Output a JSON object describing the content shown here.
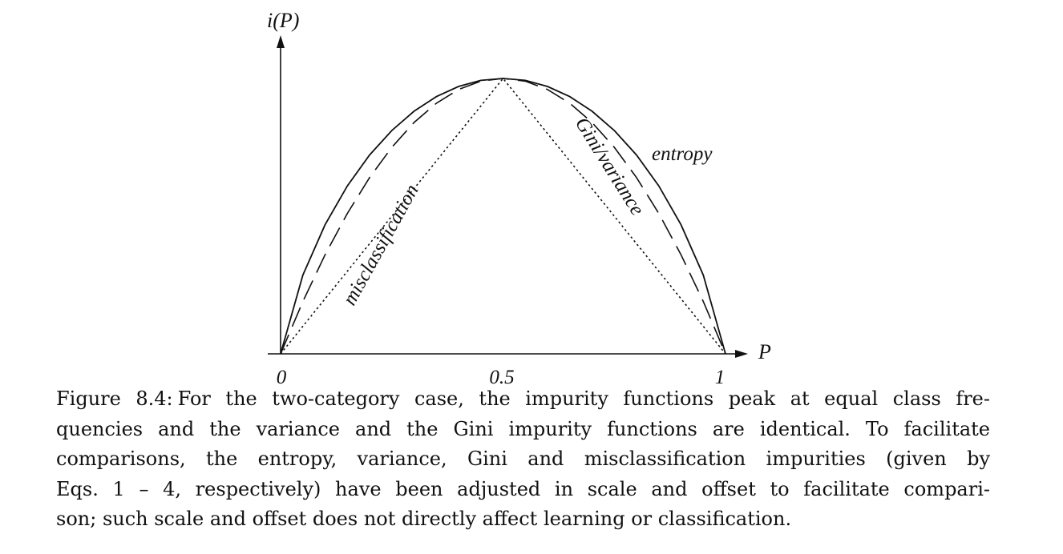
{
  "figure": {
    "y_axis_label": "i(P)",
    "x_axis_label": "P",
    "ticks": [
      "0",
      "0.5",
      "1"
    ],
    "curve_labels": {
      "entropy": "entropy",
      "gini": "Gini/variance",
      "misclassification": "misclassification"
    }
  },
  "chart_data": {
    "type": "line",
    "xlabel": "P",
    "ylabel": "i(P)",
    "xlim": [
      0,
      1
    ],
    "ylim": [
      0,
      1
    ],
    "x_ticks": [
      0,
      0.5,
      1
    ],
    "grid": false,
    "legend": "none",
    "series": [
      {
        "name": "entropy",
        "style": "solid",
        "x": [
          0,
          0.05,
          0.1,
          0.15,
          0.2,
          0.25,
          0.3,
          0.35,
          0.4,
          0.45,
          0.5,
          0.55,
          0.6,
          0.65,
          0.7,
          0.75,
          0.8,
          0.85,
          0.9,
          0.95,
          1
        ],
        "y": [
          0,
          0.286,
          0.469,
          0.61,
          0.722,
          0.811,
          0.881,
          0.934,
          0.971,
          0.993,
          1,
          0.993,
          0.971,
          0.934,
          0.881,
          0.811,
          0.722,
          0.61,
          0.469,
          0.286,
          0
        ]
      },
      {
        "name": "Gini/variance",
        "style": "dashed",
        "x": [
          0,
          0.05,
          0.1,
          0.15,
          0.2,
          0.25,
          0.3,
          0.35,
          0.4,
          0.45,
          0.5,
          0.55,
          0.6,
          0.65,
          0.7,
          0.75,
          0.8,
          0.85,
          0.9,
          0.95,
          1
        ],
        "y": [
          0,
          0.19,
          0.36,
          0.51,
          0.64,
          0.75,
          0.84,
          0.91,
          0.96,
          0.99,
          1,
          0.99,
          0.96,
          0.91,
          0.84,
          0.75,
          0.64,
          0.51,
          0.36,
          0.19,
          0
        ]
      },
      {
        "name": "misclassification",
        "style": "dotted",
        "x": [
          0,
          0.5,
          1
        ],
        "y": [
          0,
          1,
          0
        ]
      }
    ]
  },
  "caption": {
    "label": "Figure 8.4:",
    "lines": [
      "For the two-category case, the impurity functions peak at equal class fre-",
      "quencies and the variance and the Gini impurity functions are identical. To facilitate",
      "comparisons, the entropy, variance, Gini and misclassification impurities (given by",
      "Eqs. 1 – 4, respectively) have been adjusted in scale and offset to facilitate compari-",
      "son; such scale and offset does not directly affect learning or classification."
    ]
  },
  "colors": {
    "ink": "#111111",
    "background": "#ffffff"
  }
}
